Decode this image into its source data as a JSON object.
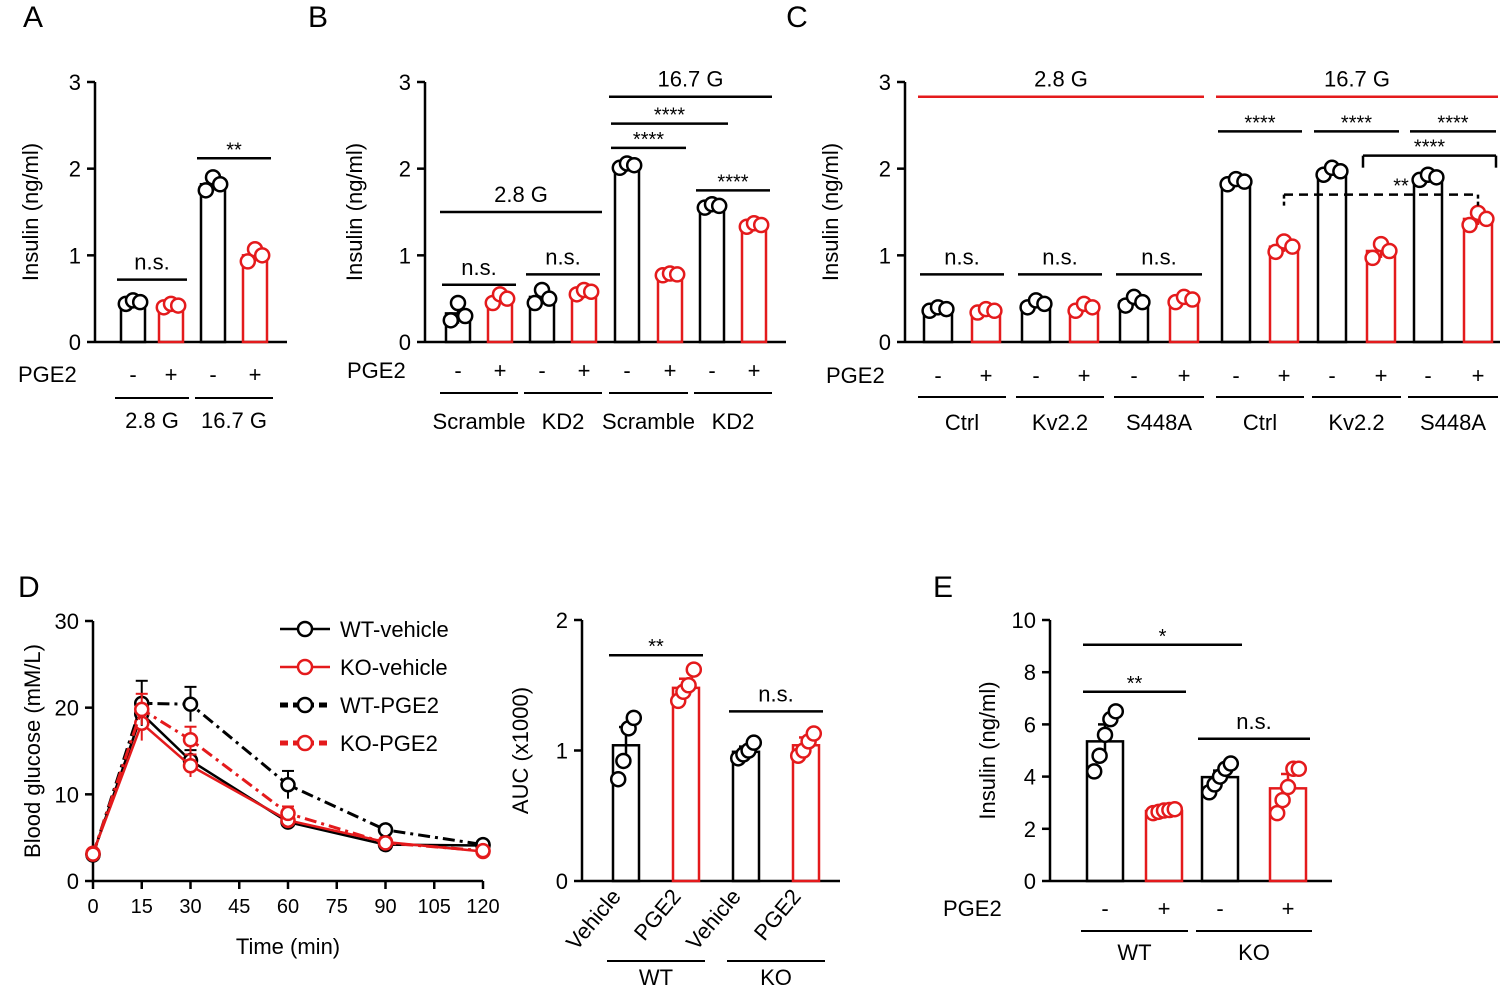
{
  "colors": {
    "black": "#000000",
    "red": "#e41a1c"
  },
  "chart_data": [
    {
      "id": "A",
      "panel_label": "A",
      "type": "bar",
      "ylabel": "Insulin (ng/ml)",
      "ylim": [
        0,
        3
      ],
      "yticks": [
        "0",
        "1",
        "2",
        "3"
      ],
      "row_label": "PGE2",
      "bars": [
        {
          "sign": "-",
          "color": "black",
          "value": 0.46,
          "err": 0.04,
          "points": [
            0.44,
            0.48,
            0.46
          ]
        },
        {
          "sign": "+",
          "color": "red",
          "value": 0.42,
          "err": 0.03,
          "points": [
            0.4,
            0.44,
            0.42
          ]
        },
        {
          "sign": "-",
          "color": "black",
          "value": 1.82,
          "err": 0.08,
          "points": [
            1.75,
            1.9,
            1.82
          ]
        },
        {
          "sign": "+",
          "color": "red",
          "value": 1.0,
          "err": 0.07,
          "points": [
            0.93,
            1.07,
            1.0
          ]
        }
      ],
      "groups": [
        {
          "label": "2.8 G",
          "bars": [
            0,
            1
          ]
        },
        {
          "label": "16.7 G",
          "bars": [
            2,
            3
          ]
        }
      ],
      "brackets": [
        {
          "text": "n.s.",
          "from": 0,
          "to": 1,
          "y": 0.72
        },
        {
          "text": "**",
          "from": 2,
          "to": 3,
          "y": 2.12
        }
      ]
    },
    {
      "id": "B",
      "panel_label": "B",
      "type": "bar",
      "ylabel": "Insulin (ng/ml)",
      "ylim": [
        0,
        3
      ],
      "yticks": [
        "0",
        "1",
        "2",
        "3"
      ],
      "row_label": "PGE2",
      "bars": [
        {
          "sign": "-",
          "color": "black",
          "value": 0.33,
          "err": 0.12,
          "points": [
            0.25,
            0.45,
            0.3
          ]
        },
        {
          "sign": "+",
          "color": "red",
          "value": 0.5,
          "err": 0.05,
          "points": [
            0.45,
            0.55,
            0.5
          ]
        },
        {
          "sign": "-",
          "color": "black",
          "value": 0.52,
          "err": 0.07,
          "points": [
            0.45,
            0.6,
            0.5
          ]
        },
        {
          "sign": "+",
          "color": "red",
          "value": 0.58,
          "err": 0.03,
          "points": [
            0.55,
            0.6,
            0.58
          ]
        },
        {
          "sign": "-",
          "color": "black",
          "value": 2.04,
          "err": 0.03,
          "points": [
            2.01,
            2.06,
            2.04
          ]
        },
        {
          "sign": "+",
          "color": "red",
          "value": 0.78,
          "err": 0.02,
          "points": [
            0.77,
            0.79,
            0.78
          ]
        },
        {
          "sign": "-",
          "color": "black",
          "value": 1.57,
          "err": 0.02,
          "points": [
            1.55,
            1.59,
            1.57
          ]
        },
        {
          "sign": "+",
          "color": "red",
          "value": 1.35,
          "err": 0.02,
          "points": [
            1.33,
            1.37,
            1.35
          ]
        }
      ],
      "groups": [
        {
          "label": "Scramble",
          "bars": [
            0,
            1
          ]
        },
        {
          "label": "KD2",
          "bars": [
            2,
            3
          ]
        },
        {
          "label": "Scramble",
          "bars": [
            4,
            5
          ]
        },
        {
          "label": "KD2",
          "bars": [
            6,
            7
          ]
        }
      ],
      "brackets": [
        {
          "text": "2.8 G",
          "from": 0,
          "to": 3,
          "y": 1.5,
          "big": true
        },
        {
          "text": "16.7 G",
          "from": 4,
          "to": 7,
          "y": 2.83,
          "big": true
        },
        {
          "text": "n.s.",
          "from": 0,
          "to": 1,
          "y": 0.66
        },
        {
          "text": "n.s.",
          "from": 2,
          "to": 3,
          "y": 0.78
        },
        {
          "text": "****",
          "from": 4,
          "to": 5,
          "y": 2.24
        },
        {
          "text": "****",
          "from": 4,
          "to": 6,
          "y": 2.52
        },
        {
          "text": "****",
          "from": 6,
          "to": 7,
          "y": 1.75
        }
      ]
    },
    {
      "id": "C",
      "panel_label": "C",
      "type": "bar",
      "ylabel": "Insulin (ng/ml)",
      "ylim": [
        0,
        3
      ],
      "yticks": [
        "0",
        "1",
        "2",
        "3"
      ],
      "row_label": "PGE2",
      "bars": [
        {
          "sign": "-",
          "color": "black",
          "value": 0.38,
          "err": 0.03,
          "points": [
            0.36,
            0.4,
            0.38
          ]
        },
        {
          "sign": "+",
          "color": "red",
          "value": 0.36,
          "err": 0.03,
          "points": [
            0.34,
            0.38,
            0.36
          ]
        },
        {
          "sign": "-",
          "color": "black",
          "value": 0.44,
          "err": 0.05,
          "points": [
            0.4,
            0.48,
            0.44
          ]
        },
        {
          "sign": "+",
          "color": "red",
          "value": 0.4,
          "err": 0.04,
          "points": [
            0.36,
            0.44,
            0.4
          ]
        },
        {
          "sign": "-",
          "color": "black",
          "value": 0.47,
          "err": 0.05,
          "points": [
            0.42,
            0.52,
            0.46
          ]
        },
        {
          "sign": "+",
          "color": "red",
          "value": 0.49,
          "err": 0.03,
          "points": [
            0.46,
            0.52,
            0.49
          ]
        },
        {
          "sign": "-",
          "color": "black",
          "value": 1.85,
          "err": 0.04,
          "points": [
            1.82,
            1.88,
            1.85
          ]
        },
        {
          "sign": "+",
          "color": "red",
          "value": 1.1,
          "err": 0.06,
          "points": [
            1.04,
            1.16,
            1.1
          ]
        },
        {
          "sign": "-",
          "color": "black",
          "value": 1.97,
          "err": 0.04,
          "points": [
            1.93,
            2.01,
            1.97
          ]
        },
        {
          "sign": "+",
          "color": "red",
          "value": 1.05,
          "err": 0.08,
          "points": [
            0.97,
            1.13,
            1.05
          ]
        },
        {
          "sign": "-",
          "color": "black",
          "value": 1.9,
          "err": 0.03,
          "points": [
            1.87,
            1.93,
            1.9
          ]
        },
        {
          "sign": "+",
          "color": "red",
          "value": 1.42,
          "err": 0.07,
          "points": [
            1.35,
            1.49,
            1.42
          ]
        }
      ],
      "groups": [
        {
          "label": "Ctrl",
          "bars": [
            0,
            1
          ]
        },
        {
          "label": "Kv2.2",
          "bars": [
            2,
            3
          ]
        },
        {
          "label": "S448A",
          "bars": [
            4,
            5
          ]
        },
        {
          "label": "Ctrl",
          "bars": [
            6,
            7
          ]
        },
        {
          "label": "Kv2.2",
          "bars": [
            8,
            9
          ]
        },
        {
          "label": "S448A",
          "bars": [
            10,
            11
          ]
        }
      ],
      "brackets": [
        {
          "text": "2.8 G",
          "from": 0,
          "to": 5,
          "y": 2.83,
          "big": true,
          "color": "red"
        },
        {
          "text": "16.7 G",
          "from": 6,
          "to": 11,
          "y": 2.83,
          "big": true,
          "color": "red"
        },
        {
          "text": "n.s.",
          "from": 0,
          "to": 1,
          "y": 0.78
        },
        {
          "text": "n.s.",
          "from": 2,
          "to": 3,
          "y": 0.78
        },
        {
          "text": "n.s.",
          "from": 4,
          "to": 5,
          "y": 0.78
        },
        {
          "text": "****",
          "from": 6,
          "to": 7,
          "y": 2.43
        },
        {
          "text": "****",
          "from": 8,
          "to": 9,
          "y": 2.43
        },
        {
          "text": "****",
          "from": 10,
          "to": 11,
          "y": 2.43
        },
        {
          "text": "****",
          "from": 9,
          "to": 11,
          "y": 2.15,
          "drop": true
        },
        {
          "text": "**",
          "from": 7,
          "to": 11,
          "y": 1.7,
          "dashed": true
        }
      ]
    },
    {
      "id": "D-line",
      "panel_label": "D",
      "type": "line",
      "xlabel": "Time (min)",
      "ylabel": "Blood glucose (mM/L)",
      "xlim": [
        0,
        120
      ],
      "ylim": [
        0,
        30
      ],
      "xticks": [
        "0",
        "15",
        "30",
        "45",
        "60",
        "75",
        "90",
        "105",
        "120"
      ],
      "yticks": [
        "0",
        "10",
        "20",
        "30"
      ],
      "x": [
        0,
        15,
        30,
        60,
        90,
        120
      ],
      "series": [
        {
          "name": "WT-vehicle",
          "color": "black",
          "dash": false,
          "values": [
            3.1,
            19.3,
            13.9,
            6.8,
            4.2,
            4.1
          ],
          "err": [
            0.3,
            1.5,
            1.2,
            0.6,
            0.4,
            0.3
          ]
        },
        {
          "name": "KO-vehicle",
          "color": "red",
          "dash": false,
          "values": [
            3.2,
            18.2,
            13.3,
            7.0,
            4.5,
            3.4
          ],
          "err": [
            0.3,
            2.0,
            1.3,
            0.6,
            0.4,
            0.3
          ]
        },
        {
          "name": "WT-PGE2",
          "color": "black",
          "dash": true,
          "values": [
            3.0,
            20.5,
            20.4,
            11.1,
            5.9,
            4.2
          ],
          "err": [
            0.3,
            2.6,
            2.0,
            1.6,
            0.5,
            0.4
          ]
        },
        {
          "name": "KO-PGE2",
          "color": "red",
          "dash": true,
          "values": [
            3.1,
            19.8,
            16.3,
            7.8,
            4.4,
            3.5
          ],
          "err": [
            0.3,
            1.8,
            1.5,
            0.8,
            0.4,
            0.3
          ]
        }
      ]
    },
    {
      "id": "D-auc",
      "panel_label": "",
      "type": "bar",
      "ylabel": "AUC (x1000)",
      "ylim": [
        0,
        2
      ],
      "yticks": [
        "0",
        "1",
        "2"
      ],
      "bars": [
        {
          "label": "Vehicle",
          "color": "black",
          "value": 1.04,
          "err": 0.14,
          "points": [
            0.78,
            0.92,
            1.17,
            1.25
          ]
        },
        {
          "label": "PGE2",
          "color": "red",
          "value": 1.48,
          "err": 0.07,
          "points": [
            1.38,
            1.45,
            1.5,
            1.62
          ]
        },
        {
          "label": "Vehicle",
          "color": "black",
          "value": 0.99,
          "err": 0.04,
          "points": [
            0.94,
            0.97,
            1.0,
            1.06
          ]
        },
        {
          "label": "PGE2",
          "color": "red",
          "value": 1.04,
          "err": 0.06,
          "points": [
            0.96,
            1.0,
            1.07,
            1.13
          ]
        }
      ],
      "groups": [
        {
          "label": "WT",
          "bars": [
            0,
            1
          ]
        },
        {
          "label": "KO",
          "bars": [
            2,
            3
          ]
        }
      ],
      "brackets": [
        {
          "text": "**",
          "from": 0,
          "to": 1,
          "y": 1.73
        },
        {
          "text": "n.s.",
          "from": 2,
          "to": 3,
          "y": 1.3
        }
      ]
    },
    {
      "id": "E",
      "panel_label": "E",
      "type": "bar",
      "ylabel": "Insulin (ng/ml)",
      "ylim": [
        0,
        10
      ],
      "yticks": [
        "0",
        "2",
        "4",
        "6",
        "8",
        "10"
      ],
      "row_label": "PGE2",
      "bars": [
        {
          "sign": "-",
          "color": "black",
          "value": 5.35,
          "err": 0.65,
          "points": [
            4.2,
            4.8,
            5.6,
            6.2,
            6.5
          ]
        },
        {
          "sign": "+",
          "color": "red",
          "value": 2.68,
          "err": 0.07,
          "points": [
            2.6,
            2.65,
            2.7,
            2.72,
            2.75
          ]
        },
        {
          "sign": "-",
          "color": "black",
          "value": 3.98,
          "err": 0.25,
          "points": [
            3.4,
            3.7,
            4.0,
            4.3,
            4.5
          ]
        },
        {
          "sign": "+",
          "color": "red",
          "value": 3.55,
          "err": 0.55,
          "points": [
            2.6,
            3.1,
            3.6,
            4.3,
            4.3
          ]
        }
      ],
      "groups": [
        {
          "label": "WT",
          "bars": [
            0,
            1
          ]
        },
        {
          "label": "KO",
          "bars": [
            2,
            3
          ]
        }
      ],
      "brackets": [
        {
          "text": "*",
          "from": 0,
          "to": 2,
          "y": 9.05
        },
        {
          "text": "**",
          "from": 0,
          "to": 1,
          "y": 7.25
        },
        {
          "text": "n.s.",
          "from": 2,
          "to": 3,
          "y": 5.45
        }
      ]
    }
  ]
}
